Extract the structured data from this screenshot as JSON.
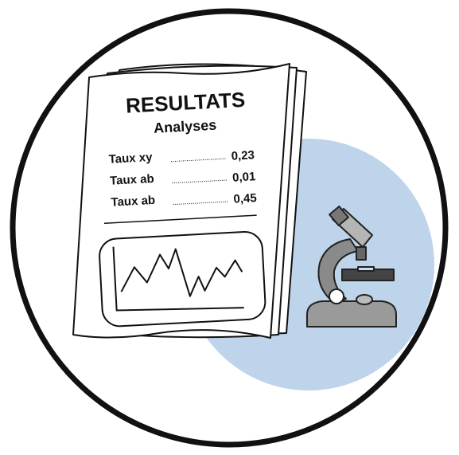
{
  "document": {
    "title": "RESULTATS",
    "subtitle": "Analyses",
    "rows": [
      {
        "label": "Taux xy",
        "value": "0,23"
      },
      {
        "label": "Taux ab",
        "value": "0,01"
      },
      {
        "label": "Taux ab",
        "value": "0,45"
      }
    ]
  }
}
